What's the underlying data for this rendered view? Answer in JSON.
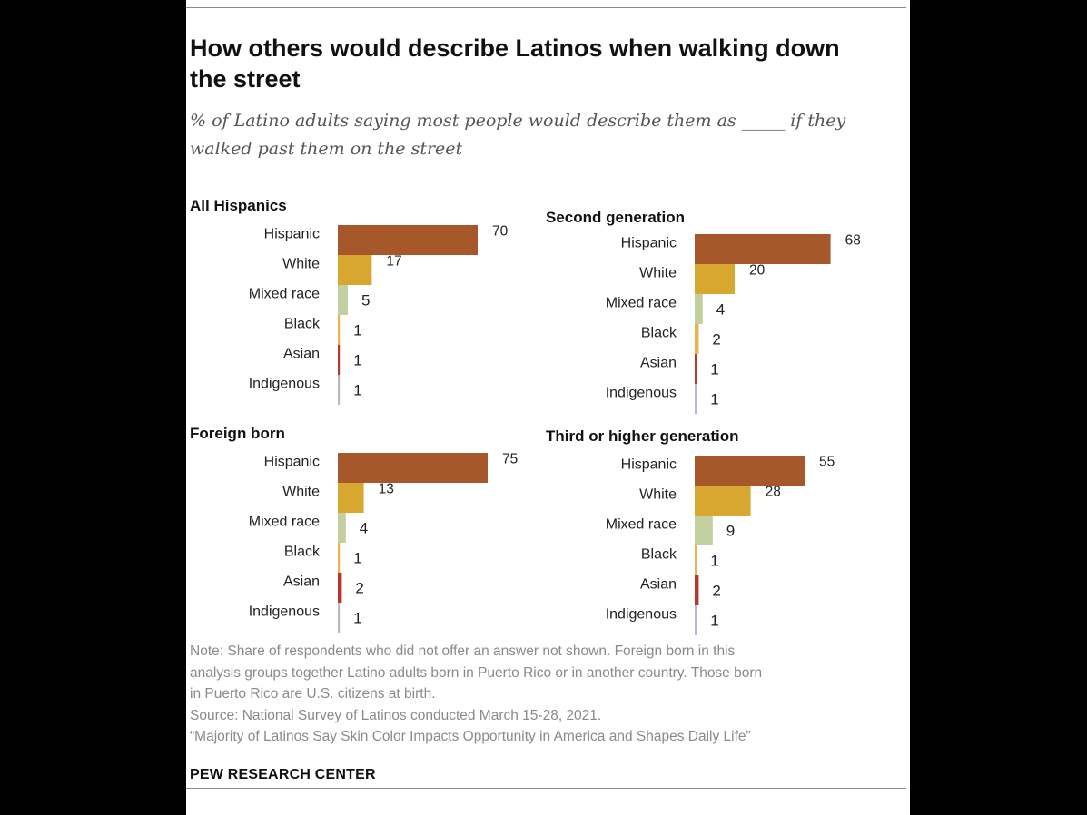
{
  "title": "How others would describe Latinos when walking down the street",
  "subtitle": "% of Latino adults saying most people would describe them as _____ if they walked past them on the street",
  "colors": {
    "Hispanic": "#a7582b",
    "White": "#d8a72f",
    "Mixed race": "#c4cf9f",
    "Black": "#f0b050",
    "Asian": "#b8362a",
    "Indigenous": "#b9b6cd"
  },
  "chart_data": [
    {
      "type": "bar",
      "title": "All Hispanics",
      "categories": [
        "Hispanic",
        "White",
        "Mixed race",
        "Black",
        "Asian",
        "Indigenous"
      ],
      "values": [
        70,
        17,
        5,
        1,
        1,
        1
      ]
    },
    {
      "type": "bar",
      "title": "Second generation",
      "categories": [
        "Hispanic",
        "White",
        "Mixed race",
        "Black",
        "Asian",
        "Indigenous"
      ],
      "values": [
        68,
        20,
        4,
        2,
        1,
        1
      ]
    },
    {
      "type": "bar",
      "title": "Foreign born",
      "categories": [
        "Hispanic",
        "White",
        "Mixed race",
        "Black",
        "Asian",
        "Indigenous"
      ],
      "values": [
        75,
        13,
        4,
        1,
        2,
        1
      ]
    },
    {
      "type": "bar",
      "title": "Third or higher generation",
      "categories": [
        "Hispanic",
        "White",
        "Mixed race",
        "Black",
        "Asian",
        "Indigenous"
      ],
      "values": [
        55,
        28,
        9,
        1,
        2,
        1
      ]
    }
  ],
  "notes": {
    "note_lines": [
      "Note: Share of respondents who did not offer an answer not shown. Foreign born in this",
      "analysis groups together Latino adults born in Puerto Rico or in another country. Those born",
      "in Puerto Rico are U.S. citizens at birth."
    ],
    "source": "Source: National Survey of Latinos conducted March 15-28, 2021.",
    "report": "“Majority of Latinos Say Skin Color Impacts Opportunity in America and Shapes Daily Life”"
  },
  "credit": "PEW RESEARCH CENTER"
}
